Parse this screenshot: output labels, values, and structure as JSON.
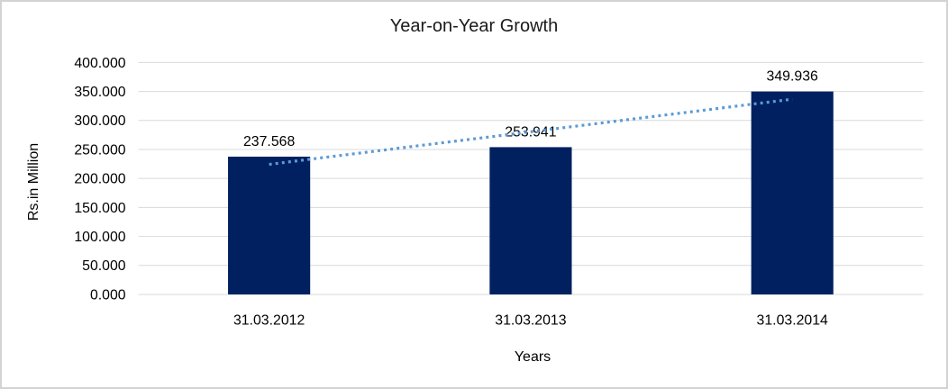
{
  "chart_data": {
    "type": "bar",
    "title": "Year-on-Year Growth",
    "xlabel": "Years",
    "ylabel": "Rs.in Million",
    "categories": [
      "31.03.2012",
      "31.03.2013",
      "31.03.2014"
    ],
    "values": [
      237.568,
      253.941,
      349.936
    ],
    "value_labels": [
      "237.568",
      "253.941",
      "349.936"
    ],
    "y_ticks": [
      "0.000",
      "50.000",
      "100.000",
      "150.000",
      "200.000",
      "250.000",
      "300.000",
      "350.000",
      "400.000"
    ],
    "ylim": [
      0,
      400
    ],
    "grid": true,
    "legend": "none",
    "trendline": {
      "type": "linear",
      "style": "dotted",
      "color": "#5B9BD5"
    },
    "colors": {
      "bar": "#002060",
      "gridline": "#D9D9D9",
      "frame_border": "#D3D3D3",
      "text": "#000000"
    }
  }
}
